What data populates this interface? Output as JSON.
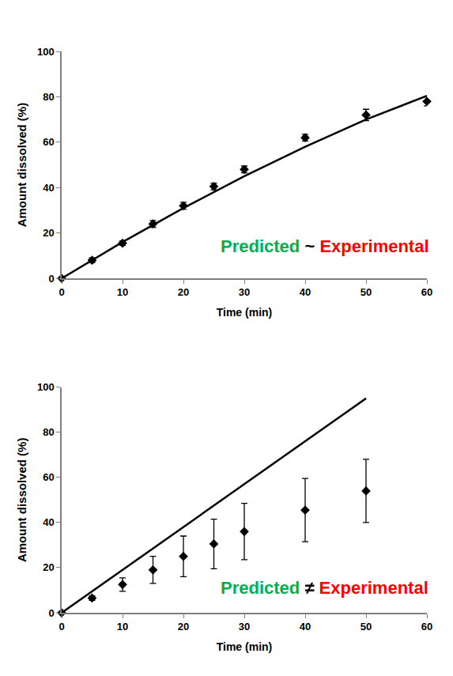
{
  "chart_data": [
    {
      "type": "line",
      "x_label": "Time (min)",
      "y_label": "Amount dissolved (%)",
      "xlim": [
        0,
        60
      ],
      "xticks": [
        0,
        10,
        20,
        30,
        40,
        50,
        60
      ],
      "ylim": [
        0,
        100
      ],
      "yticks": [
        0,
        20,
        40,
        60,
        80,
        100
      ],
      "grid": false,
      "annotations": [
        {
          "text": "Predicted",
          "color": "#00b050"
        },
        {
          "text": "~",
          "color": "#000000"
        },
        {
          "text": "Experimental",
          "color": "#ff0000"
        }
      ],
      "series": [
        {
          "type": "line",
          "color": "#000000",
          "line_style": "solid",
          "x": [
            0,
            10,
            20,
            30,
            40,
            50,
            60
          ],
          "values": [
            0,
            16,
            31,
            45,
            58,
            70,
            80.5
          ]
        },
        {
          "type": "scatter",
          "color": "#000000",
          "marker": "diamond",
          "x": [
            0,
            5,
            10,
            15,
            20,
            25,
            30,
            40,
            50,
            60
          ],
          "values": [
            0,
            8,
            15.5,
            24,
            32,
            40.5,
            48,
            62,
            72,
            78
          ],
          "error": [
            0,
            1,
            1,
            1.5,
            1.5,
            1.5,
            1.5,
            1.5,
            2.5,
            2
          ]
        }
      ]
    },
    {
      "type": "line",
      "x_label": "Time (min)",
      "y_label": "Amount dissolved (%)",
      "xlim": [
        0,
        60
      ],
      "xticks": [
        0,
        10,
        20,
        30,
        40,
        50,
        60
      ],
      "ylim": [
        0,
        100
      ],
      "yticks": [
        0,
        20,
        40,
        60,
        80,
        100
      ],
      "grid": false,
      "annotations": [
        {
          "text": "Predicted",
          "color": "#00b050"
        },
        {
          "text": "≠",
          "color": "#000000"
        },
        {
          "text": "Experimental",
          "color": "#ff0000"
        }
      ],
      "series": [
        {
          "type": "line",
          "color": "#000000",
          "line_style": "solid",
          "x": [
            0,
            10,
            20,
            30,
            40,
            50
          ],
          "values": [
            0,
            19,
            38,
            57,
            76,
            95
          ]
        },
        {
          "type": "scatter",
          "color": "#000000",
          "marker": "diamond",
          "x": [
            0,
            5,
            10,
            15,
            20,
            25,
            30,
            40,
            50
          ],
          "values": [
            0,
            6.5,
            12.5,
            19,
            25,
            30.5,
            36,
            45.5,
            54
          ],
          "error": [
            0,
            1,
            3,
            6,
            9,
            11,
            12.5,
            14,
            14
          ]
        }
      ]
    }
  ]
}
